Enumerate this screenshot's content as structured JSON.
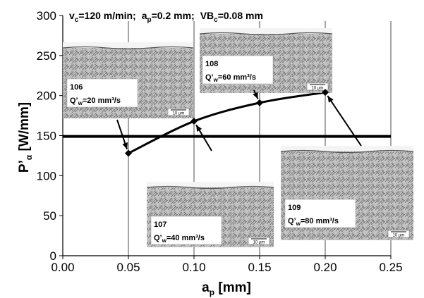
{
  "chart_data": {
    "type": "line",
    "title": "",
    "conditions": {
      "vc_sym": "v",
      "vc_sub": "c",
      "vc_val": "=120 m/min;",
      "ap_sym": "a",
      "ap_sub": "p",
      "ap_val": "=0.2 mm;",
      "vb_sym": "VB",
      "vb_sub": "c",
      "vb_val": "=0.08 mm"
    },
    "xlabel": {
      "main": "a",
      "sub": "p",
      "rest": " [mm]"
    },
    "ylabel": {
      "main": "P’",
      "sub": "α",
      "rest": " [W/mm]"
    },
    "xlim": [
      0,
      0.25
    ],
    "ylim": [
      0,
      300
    ],
    "x_ticks": [
      0,
      0.05,
      0.1,
      0.15,
      0.2,
      0.25
    ],
    "x_tick_labels": [
      "0.00",
      "0.05",
      "0.10",
      "0.15",
      "0.20",
      "0.25"
    ],
    "y_ticks": [
      0,
      50,
      100,
      150,
      200,
      250,
      300
    ],
    "y_tick_labels": [
      "0",
      "50",
      "100",
      "150",
      "200",
      "250",
      "300"
    ],
    "grid": "vertical",
    "series": [
      {
        "x": [
          0.05,
          0.1,
          0.15,
          0.2
        ],
        "y": [
          128,
          168,
          191,
          204
        ]
      }
    ],
    "reference_line": {
      "y": 149
    },
    "micrographs": [
      {
        "sample": "106",
        "q_main": "Q’",
        "q_sub": "w",
        "q_val": "=20 mm³/s",
        "scale": "10 µm",
        "target": [
          0.05,
          128
        ]
      },
      {
        "sample": "107",
        "q_main": "Q’",
        "q_sub": "w",
        "q_val": "=40 mm³/s",
        "scale": "10 µm",
        "target": [
          0.1,
          168
        ]
      },
      {
        "sample": "108",
        "q_main": "Q’",
        "q_sub": "w",
        "q_val": "=60 mm³/s",
        "scale": "10 µm",
        "target": [
          0.15,
          191
        ]
      },
      {
        "sample": "109",
        "q_main": "Q’",
        "q_sub": "w",
        "q_val": "=80 mm³/s",
        "scale": "10 µm",
        "target": [
          0.2,
          204
        ]
      }
    ]
  }
}
